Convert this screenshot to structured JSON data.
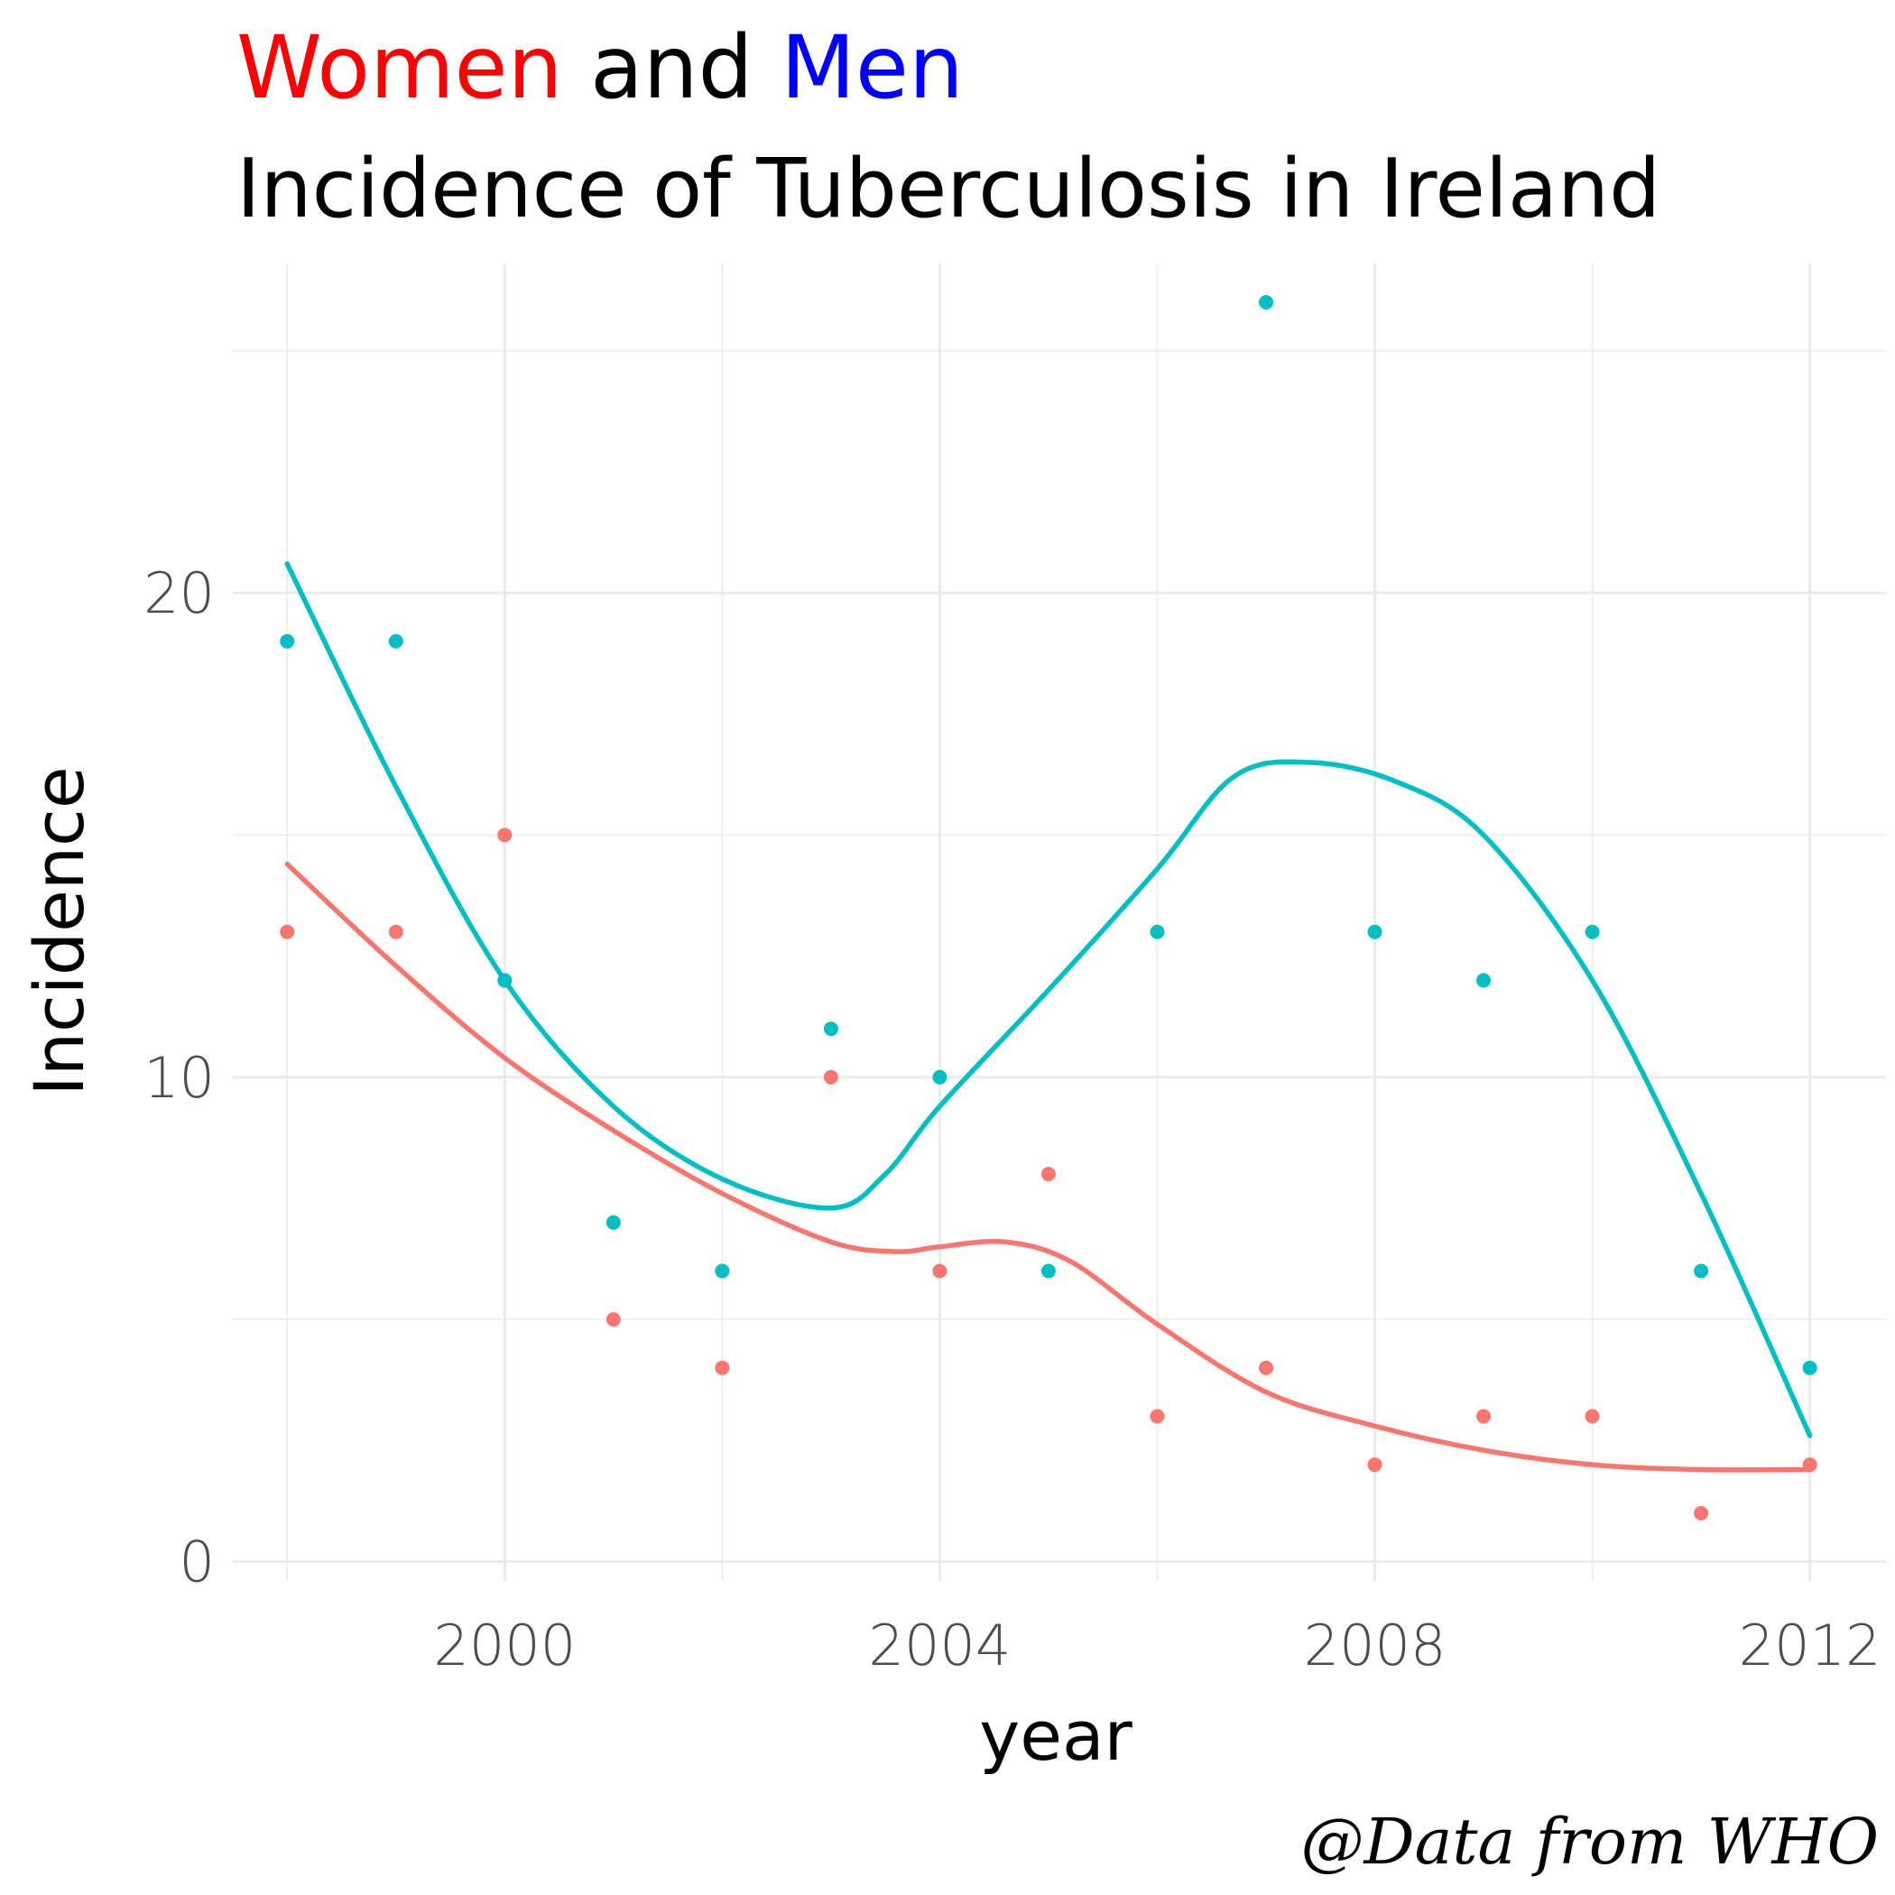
{
  "title": {
    "part1": "Women",
    "part2": " and ",
    "part3": "Men"
  },
  "subtitle": "Incidence of Tuberculosis in Ireland",
  "caption": "@Data from WHO",
  "colors": {
    "women_title": "#ff0000",
    "men_title": "#0000ff",
    "women": "#f8766d",
    "men": "#00bfc4",
    "grid": "#ebebeb"
  },
  "chart_data": {
    "type": "scatter",
    "xlabel": "year",
    "ylabel": "Incidence",
    "xlim": [
      1997.5,
      2012.7
    ],
    "ylim": [
      -0.4,
      26.8
    ],
    "x_ticks": [
      2000,
      2004,
      2008,
      2012
    ],
    "y_ticks": [
      0,
      10,
      20
    ],
    "grid": true,
    "legend": "none",
    "x": [
      1998,
      1999,
      2000,
      2001,
      2002,
      2003,
      2004,
      2005,
      2006,
      2007,
      2008,
      2009,
      2010,
      2011,
      2012
    ],
    "series": [
      {
        "values": [
          19,
          19,
          12,
          7,
          6,
          11,
          10,
          6,
          13,
          26,
          13,
          12,
          13,
          6,
          4
        ],
        "smooth": [
          [
            1998,
            20.6
          ],
          [
            1999,
            16
          ],
          [
            2000,
            12
          ],
          [
            2001,
            9.4
          ],
          [
            2002,
            7.9
          ],
          [
            2003,
            7.3
          ],
          [
            2003.5,
            8
          ],
          [
            2004,
            9.4
          ],
          [
            2005,
            11.8
          ],
          [
            2006,
            14.3
          ],
          [
            2006.7,
            16.2
          ],
          [
            2007.4,
            16.5
          ],
          [
            2008.2,
            16.1
          ],
          [
            2009,
            15
          ],
          [
            2010,
            12
          ],
          [
            2011,
            7.6
          ],
          [
            2012,
            2.6
          ]
        ]
      },
      {
        "values": [
          13,
          13,
          15,
          5,
          4,
          10,
          6,
          8,
          3,
          4,
          2,
          3,
          3,
          1,
          2
        ],
        "smooth": [
          [
            1998,
            14.4
          ],
          [
            1999,
            12.3
          ],
          [
            2000,
            10.4
          ],
          [
            2001,
            8.9
          ],
          [
            2002,
            7.6
          ],
          [
            2003,
            6.6
          ],
          [
            2003.6,
            6.4
          ],
          [
            2004,
            6.5
          ],
          [
            2004.6,
            6.6
          ],
          [
            2005.2,
            6.2
          ],
          [
            2006,
            4.9
          ],
          [
            2007,
            3.5
          ],
          [
            2008,
            2.8
          ],
          [
            2009,
            2.3
          ],
          [
            2010,
            2
          ],
          [
            2011,
            1.9
          ],
          [
            2012,
            1.9
          ]
        ]
      }
    ]
  }
}
